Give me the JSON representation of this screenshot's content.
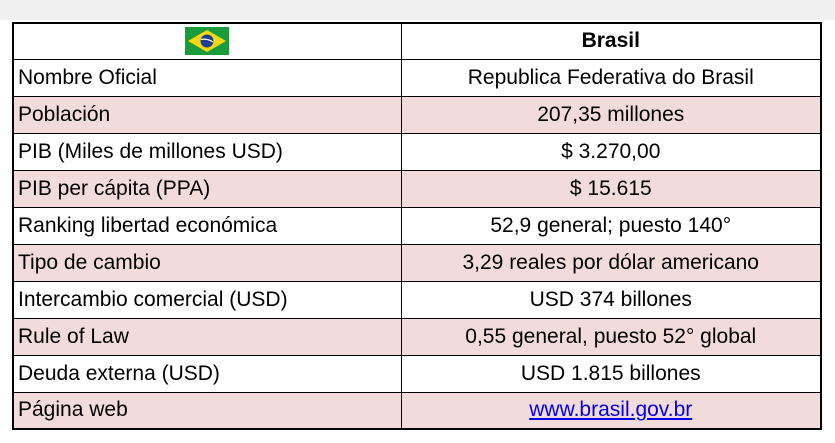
{
  "header": {
    "title": "Brasil"
  },
  "table": {
    "rows": [
      [
        "Nombre Oficial",
        "Republica Federativa do Brasil"
      ],
      [
        "Población",
        "207,35 millones"
      ],
      [
        "PIB (Miles de millones USD)",
        "$ 3.270,00"
      ],
      [
        "PIB per cápita (PPA)",
        "$ 15.615"
      ],
      [
        "Ranking libertad económica",
        "52,9 general; puesto 140°"
      ],
      [
        "Tipo de cambio",
        "3,29 reales por dólar americano"
      ],
      [
        "Intercambio comercial (USD)",
        "USD 374 billones"
      ],
      [
        "Rule of Law",
        "0,55 general, puesto 52° global"
      ],
      [
        "Deuda externa (USD)",
        "USD 1.815 billones"
      ],
      [
        "Página web",
        "www.brasil.gov.br"
      ]
    ]
  }
}
